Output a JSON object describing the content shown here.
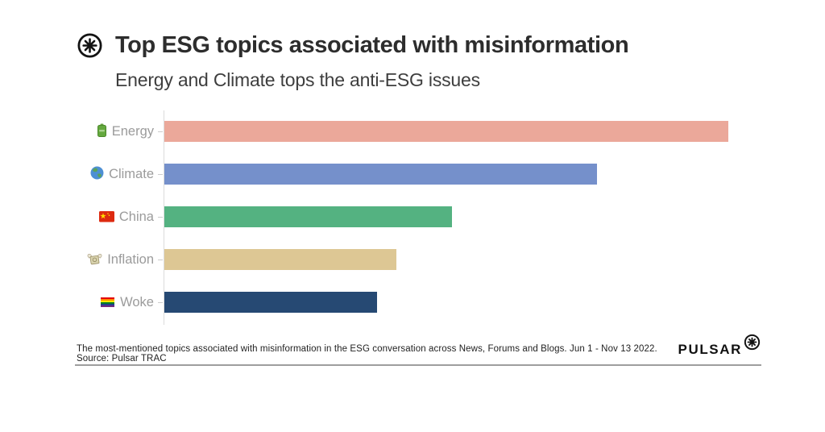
{
  "header": {
    "title": "Top ESG topics associated with misinformation",
    "subtitle": "Energy and Climate tops the anti-ESG issues",
    "logo_icon": "pulsar-starburst-icon"
  },
  "chart_data": {
    "type": "bar",
    "orientation": "horizontal",
    "title": "Top ESG topics associated with misinformation",
    "subtitle": "Energy and Climate tops the anti-ESG issues",
    "categories": [
      "Energy",
      "Climate",
      "China",
      "Inflation",
      "Woke"
    ],
    "category_icons": [
      "battery-icon",
      "globe-icon",
      "china-flag-icon",
      "money-with-wings-icon",
      "rainbow-flag-icon"
    ],
    "values": [
      100,
      76.7,
      51.0,
      41.1,
      37.7
    ],
    "value_unit": "percent of longest bar (no numeric axis shown)",
    "bar_colors": [
      "#eba89a",
      "#7590cb",
      "#54b281",
      "#ddc794",
      "#264973"
    ],
    "xlabel": "",
    "ylabel": "",
    "xlim": [
      0,
      100
    ],
    "grid": false,
    "legend": false,
    "axis_color": "#dcdcdc",
    "label_color": "#9b9b9b"
  },
  "footer": {
    "caption": "The most-mentioned topics associated with misinformation in the ESG conversation across News, Forums and Blogs. Jun 1 - Nov 13 2022. Source: Pulsar TRAC",
    "brand": "PULSAR",
    "brand_icon": "pulsar-starburst-icon"
  }
}
